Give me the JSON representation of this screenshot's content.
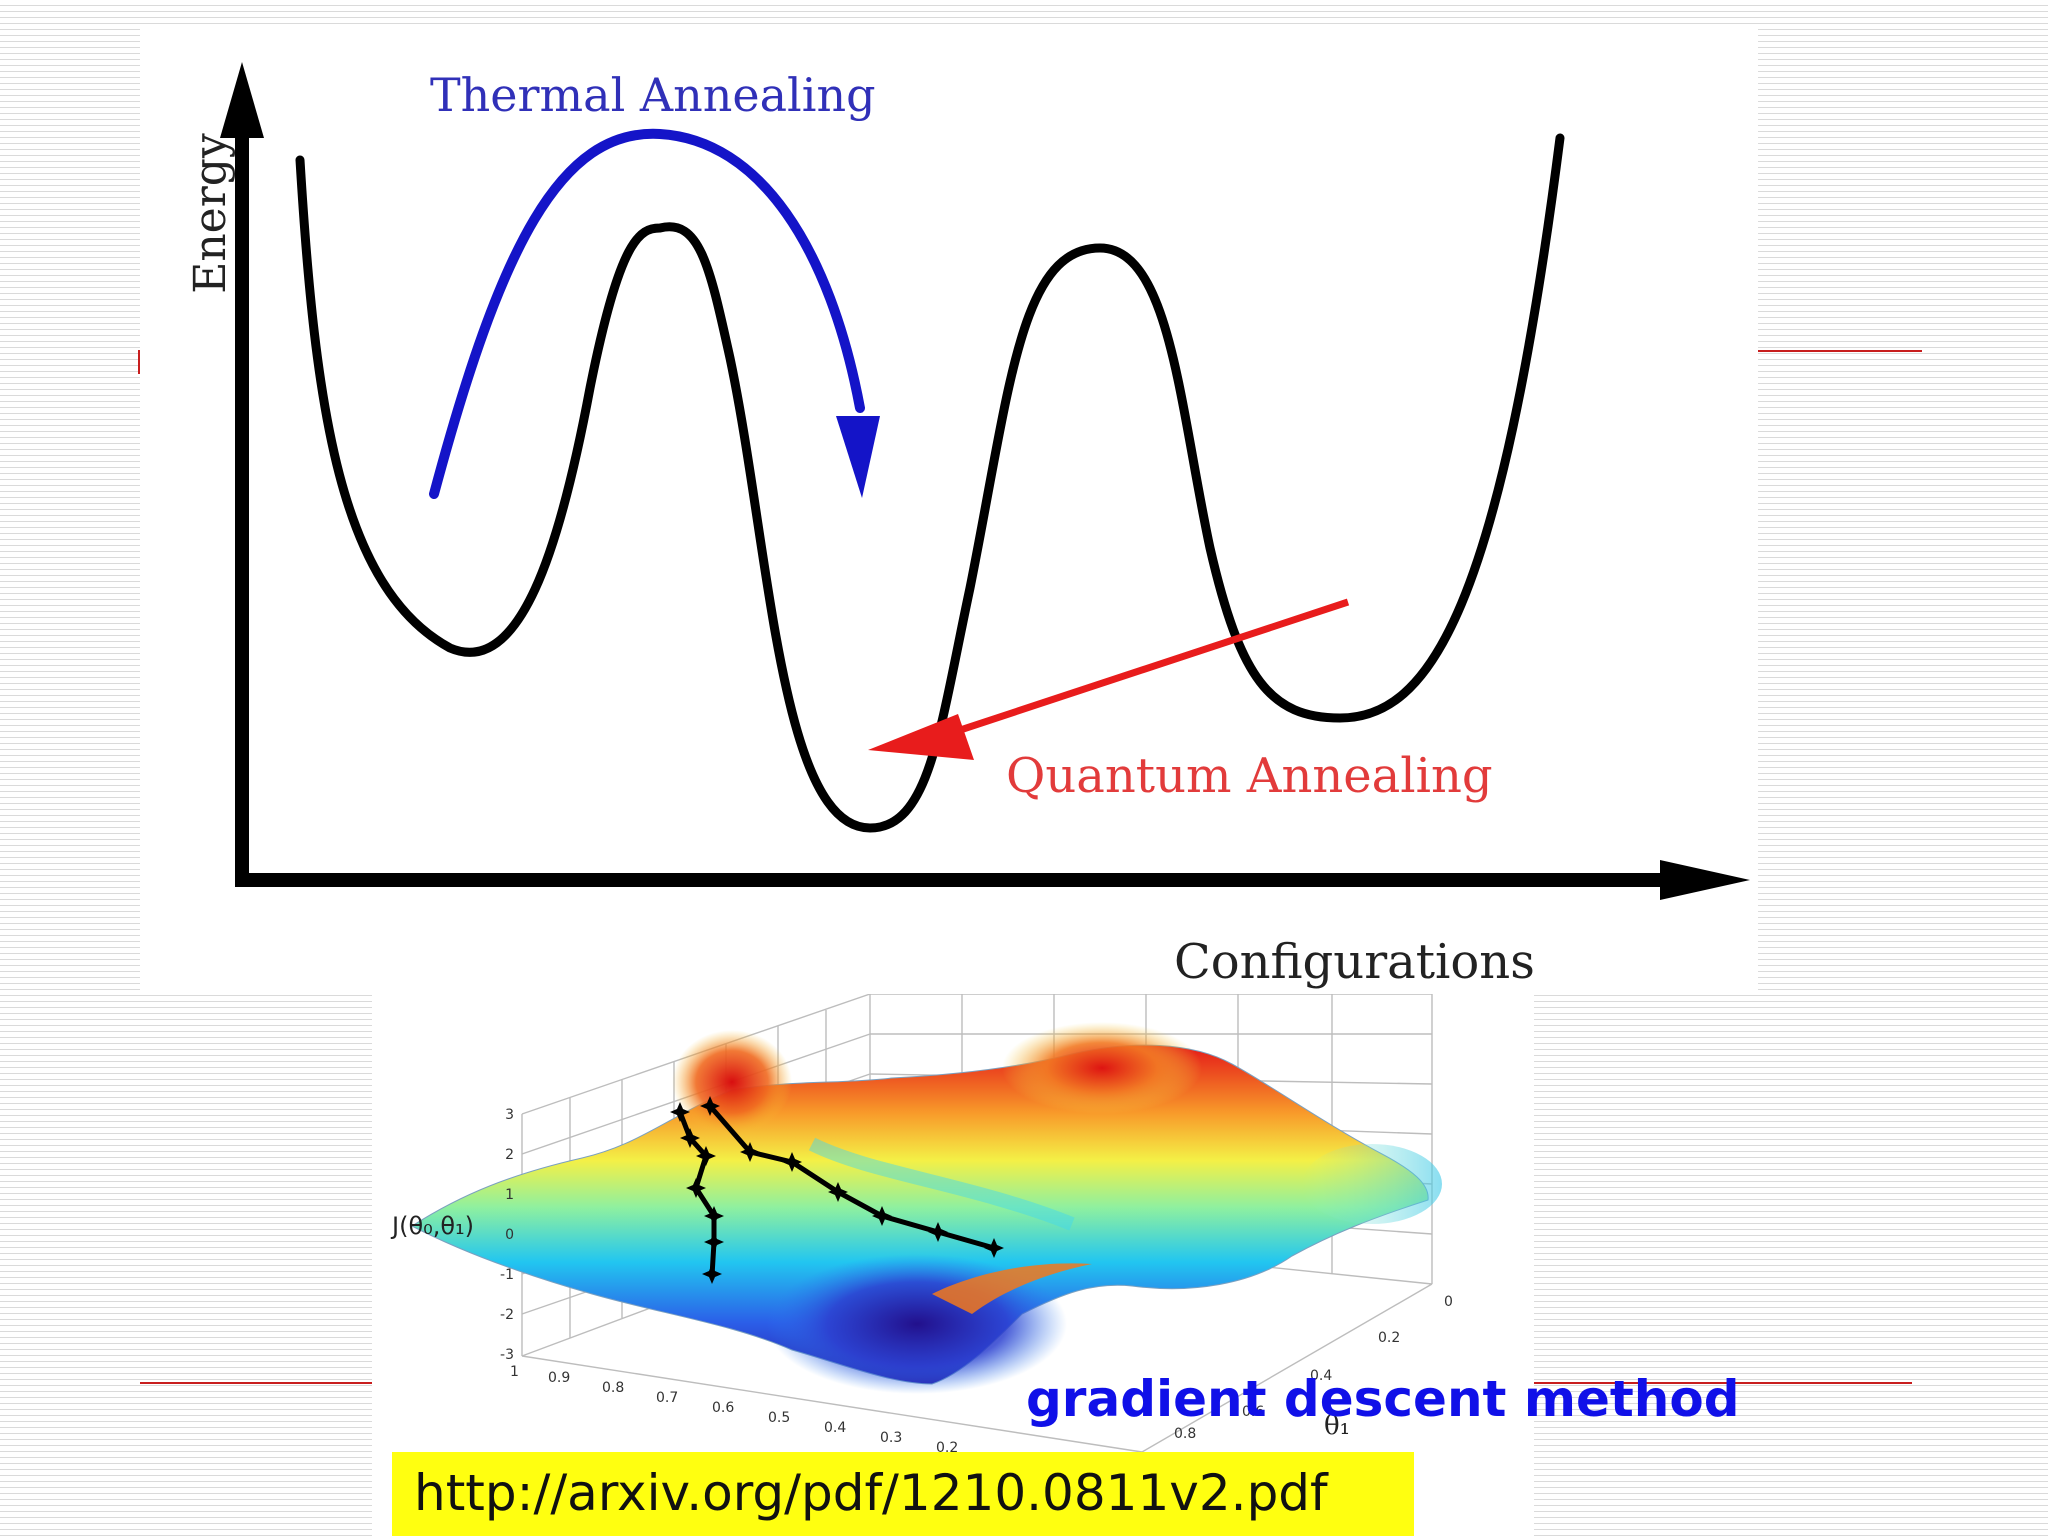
{
  "slide": {
    "background_color": "#ffffff",
    "stripe_color": "#dadada",
    "rule_color": "#c81e1e"
  },
  "annealing_diagram": {
    "y_axis_label": "Energy",
    "x_axis_label": "Configurations",
    "thermal_label": "Thermal Annealing",
    "quantum_label": "Quantum Annealing",
    "thermal_color": "#1414c8",
    "quantum_color": "#e81c1c",
    "curve_color": "#000000"
  },
  "gradient_figure": {
    "z_axis_label": "J(θ₀,θ₁)",
    "theta1_label": "θ₁",
    "z_ticks": [
      "3",
      "2",
      "1",
      "0",
      "-1",
      "-2",
      "-3"
    ],
    "theta0_ticks": [
      "1",
      "0.9",
      "0.8",
      "0.7",
      "0.6",
      "0.5",
      "0.4",
      "0.3",
      "0.2"
    ],
    "theta1_ticks": [
      "0",
      "0.2",
      "0.4",
      "0.6",
      "0.8"
    ]
  },
  "caption": {
    "text": "gradient descent method",
    "color": "#1010e8"
  },
  "source": {
    "url": "http://arxiv.org/pdf/1210.0811v2.pdf",
    "highlight_color": "#ffff10"
  }
}
